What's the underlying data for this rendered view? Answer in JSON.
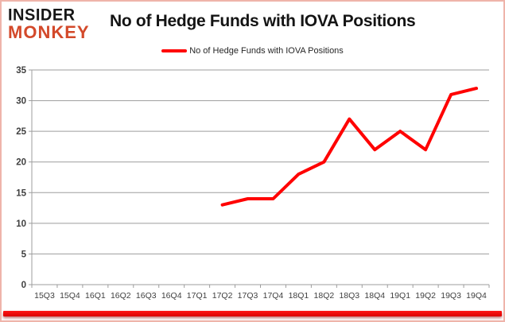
{
  "header": {
    "logo_line1": "INSIDER",
    "logo_line2": "MONKEY",
    "title": "No of Hedge Funds with IOVA Positions"
  },
  "legend": {
    "label": "No of Hedge Funds with IOVA Positions"
  },
  "colors": {
    "line": "#ff0000",
    "gridline": "#9d9d9d",
    "axis": "#9d9d9d",
    "tick_label": "#3f3f3f",
    "logo_black": "#161616",
    "logo_red": "#d3492a",
    "frame_border": "#efb4aa",
    "bottom_bar_top": "#ff1515",
    "bottom_bar_bottom": "#da0000"
  },
  "chart_data": {
    "type": "line",
    "title": "No of Hedge Funds with IOVA Positions",
    "categories": [
      "15Q3",
      "15Q4",
      "16Q1",
      "16Q2",
      "16Q3",
      "16Q4",
      "17Q1",
      "17Q2",
      "17Q3",
      "17Q4",
      "18Q1",
      "18Q2",
      "18Q3",
      "18Q4",
      "19Q1",
      "19Q2",
      "19Q3",
      "19Q4"
    ],
    "series": [
      {
        "name": "No of Hedge Funds with IOVA Positions",
        "color": "#ff0000",
        "values": [
          null,
          null,
          null,
          null,
          null,
          null,
          null,
          13,
          14,
          14,
          18,
          20,
          27,
          22,
          25,
          22,
          31,
          32
        ]
      }
    ],
    "ylim": [
      0,
      35
    ],
    "ytick_step": 5,
    "grid": true,
    "legend_position": "top"
  }
}
